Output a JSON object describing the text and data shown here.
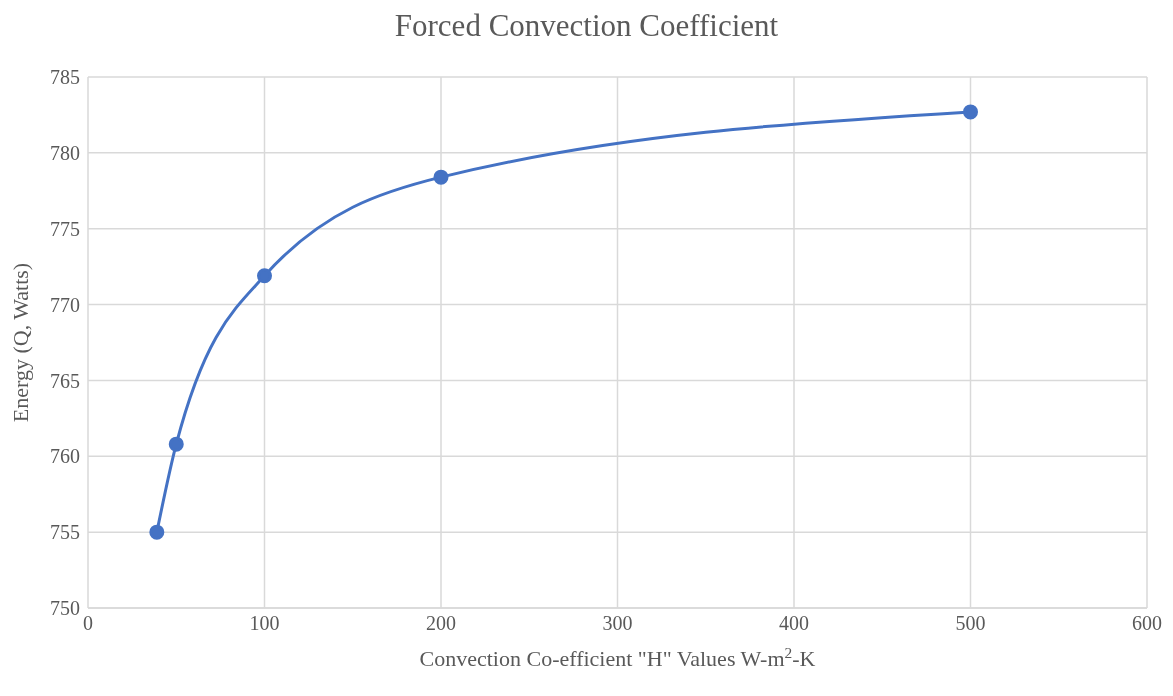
{
  "chart_data": {
    "type": "line",
    "title": "Forced Convection Coefficient",
    "xlabel": "Convection Co-efficient \"H\" Values W-m$^{2}$-K",
    "ylabel": "Energy (Q, Watts)",
    "x": [
      39,
      50,
      100,
      200,
      500
    ],
    "series": [
      {
        "color": "#4472c4",
        "values": [
          755,
          760.8,
          771.9,
          778.4,
          782.7
        ]
      }
    ],
    "xlim": [
      0,
      600
    ],
    "xticks": [
      0,
      100,
      200,
      300,
      400,
      500,
      600
    ],
    "ylim": [
      750,
      785
    ],
    "yticks": [
      750,
      755,
      760,
      765,
      770,
      775,
      780,
      785
    ],
    "grid": true,
    "marker": "circle",
    "line_style": "solid"
  }
}
